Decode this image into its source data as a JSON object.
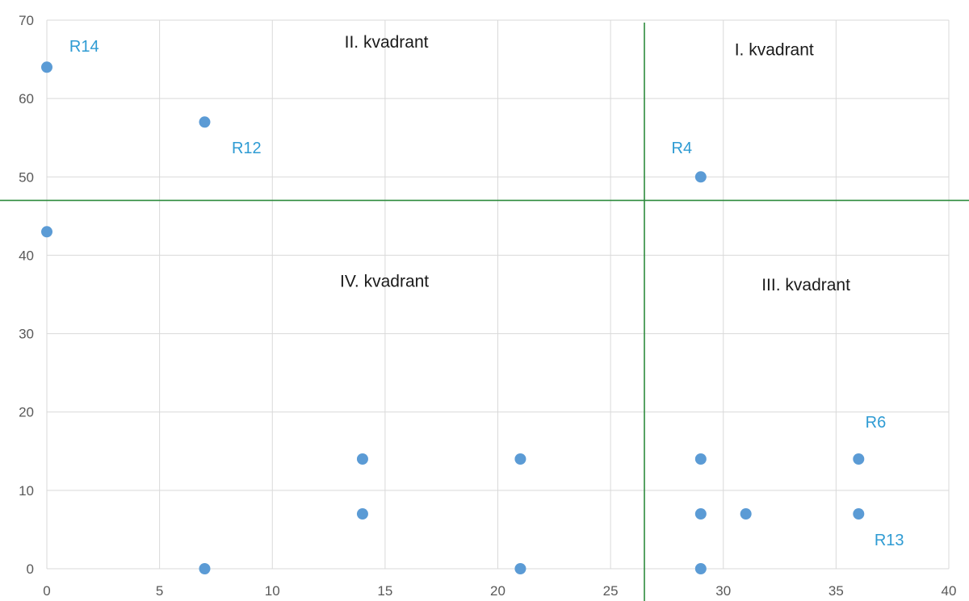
{
  "chart_data": {
    "type": "scatter",
    "title": "",
    "xlabel": "",
    "ylabel": "",
    "xlim": [
      0,
      40
    ],
    "ylim": [
      0,
      70
    ],
    "x_ticks": [
      0,
      5,
      10,
      15,
      20,
      25,
      30,
      35,
      40
    ],
    "y_ticks": [
      0,
      10,
      20,
      30,
      40,
      50,
      60,
      70
    ],
    "grid": true,
    "legend": "none",
    "colors": {
      "points": "#5b9bd5",
      "divider_lines": "#2e8b3e",
      "grid": "#d9d9d9",
      "point_labels": "#2e9bd3",
      "quadrant_labels": "#1a1a1a"
    },
    "points": [
      {
        "x": 0,
        "y": 64
      },
      {
        "x": 7,
        "y": 57
      },
      {
        "x": 0,
        "y": 43
      },
      {
        "x": 29,
        "y": 50
      },
      {
        "x": 14,
        "y": 14
      },
      {
        "x": 21,
        "y": 14
      },
      {
        "x": 29,
        "y": 14
      },
      {
        "x": 36,
        "y": 14
      },
      {
        "x": 14,
        "y": 7
      },
      {
        "x": 29,
        "y": 7
      },
      {
        "x": 31,
        "y": 7
      },
      {
        "x": 36,
        "y": 7
      },
      {
        "x": 7,
        "y": 0
      },
      {
        "x": 21,
        "y": 0
      },
      {
        "x": 29,
        "y": 0
      }
    ],
    "point_labels": [
      {
        "text": "R14",
        "x": 1,
        "y": 66
      },
      {
        "text": "R12",
        "x": 8.2,
        "y": 53
      },
      {
        "text": "R4",
        "x": 27.7,
        "y": 53
      },
      {
        "text": "R6",
        "x": 36.3,
        "y": 18
      },
      {
        "text": "R13",
        "x": 36.7,
        "y": 3
      }
    ],
    "divider_lines": {
      "vertical_x": 26.5,
      "horizontal_y": 47
    },
    "quadrant_labels": [
      {
        "text": "II. kvadrant",
        "x": 13.2,
        "y": 66.5
      },
      {
        "text": "I. kvadrant",
        "x": 30.5,
        "y": 65.5
      },
      {
        "text": "IV. kvadrant",
        "x": 13,
        "y": 36
      },
      {
        "text": "III. kvadrant",
        "x": 31.7,
        "y": 35.5
      }
    ]
  }
}
